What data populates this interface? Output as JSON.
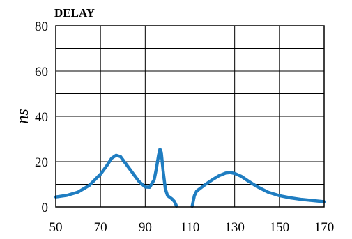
{
  "chart_data": {
    "type": "line",
    "title": "DELAY",
    "xlabel": "",
    "ylabel": "ns",
    "xlim": [
      50,
      170
    ],
    "ylim": [
      0,
      80
    ],
    "x_ticks": [
      50,
      70,
      90,
      110,
      130,
      150,
      170
    ],
    "y_ticks": [
      0,
      20,
      40,
      60,
      80
    ],
    "grid": true,
    "line_color": "#1f7dc1",
    "series": [
      {
        "segments": [
          [
            [
              50,
              4.4
            ],
            [
              55,
              5.1
            ],
            [
              60,
              6.6
            ],
            [
              65,
              9.5
            ],
            [
              70,
              14.5
            ],
            [
              73,
              18.5
            ],
            [
              75,
              21.5
            ],
            [
              77,
              22.8
            ],
            [
              79,
              22.2
            ],
            [
              81,
              19.5
            ],
            [
              84,
              15.5
            ],
            [
              87,
              11.5
            ],
            [
              90,
              8.8
            ],
            [
              92,
              8.7
            ],
            [
              94,
              12
            ],
            [
              95,
              17
            ],
            [
              96,
              23
            ],
            [
              96.6,
              25.5
            ],
            [
              97.2,
              24
            ],
            [
              98,
              16
            ],
            [
              99,
              8
            ],
            [
              100,
              5
            ],
            [
              102,
              3.5
            ],
            [
              103,
              2.5
            ],
            [
              104,
              0.4
            ]
          ],
          [
            [
              111,
              0.3
            ],
            [
              112,
              5
            ],
            [
              113,
              7
            ],
            [
              115,
              8.5
            ],
            [
              117,
              10
            ],
            [
              120,
              12
            ],
            [
              123,
              13.8
            ],
            [
              126,
              15
            ],
            [
              128,
              15.2
            ],
            [
              130,
              14.8
            ],
            [
              133,
              13.5
            ],
            [
              136,
              11.5
            ],
            [
              140,
              9
            ],
            [
              145,
              6.5
            ],
            [
              150,
              5
            ],
            [
              155,
              4
            ],
            [
              160,
              3.3
            ],
            [
              165,
              2.8
            ],
            [
              170,
              2.3
            ]
          ]
        ]
      }
    ]
  }
}
